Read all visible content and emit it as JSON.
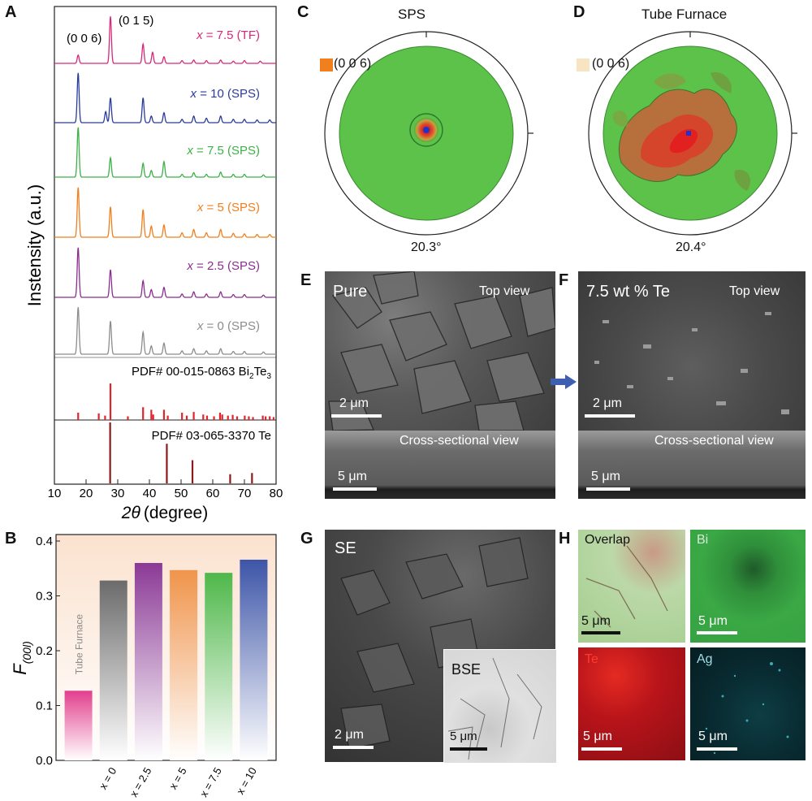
{
  "panel_labels": {
    "a": "A",
    "b": "B",
    "c": "C",
    "d": "D",
    "e": "E",
    "f": "F",
    "g": "G",
    "h": "H"
  },
  "chart_data": [
    {
      "type": "line",
      "panel": "A",
      "xlabel_var": "2θ",
      "xlabel_unit": "(degree)",
      "ylabel": "Instensity (a.u.)",
      "xlim": [
        10,
        80
      ],
      "xticks": [
        10,
        20,
        30,
        40,
        50,
        60,
        70,
        80
      ],
      "peak_labels": [
        "(0 0 6)",
        "(0 1 5)"
      ],
      "series": [
        {
          "name": "x = 7.5 (TF)",
          "var": "x",
          "rest": " = 7.5 (TF)",
          "color": "#d6297a",
          "peaks": [
            [
              17.5,
              0.15
            ],
            [
              27.7,
              0.85
            ],
            [
              38,
              0.35
            ],
            [
              41,
              0.2
            ],
            [
              44.6,
              0.12
            ],
            [
              50.3,
              0.05
            ],
            [
              54,
              0.06
            ],
            [
              58,
              0.05
            ],
            [
              62.5,
              0.06
            ],
            [
              66.5,
              0.04
            ],
            [
              70,
              0.05
            ],
            [
              75,
              0.04
            ]
          ]
        },
        {
          "name": "x = 10 (SPS)",
          "var": "x",
          "rest": " = 10 (SPS)",
          "color": "#2a3b9c",
          "peaks": [
            [
              17.5,
              0.9
            ],
            [
              26.2,
              0.2
            ],
            [
              27.7,
              0.45
            ],
            [
              38,
              0.45
            ],
            [
              40.6,
              0.12
            ],
            [
              44.6,
              0.18
            ],
            [
              50.3,
              0.06
            ],
            [
              54,
              0.12
            ],
            [
              58,
              0.08
            ],
            [
              62.5,
              0.12
            ],
            [
              66.5,
              0.06
            ],
            [
              70,
              0.06
            ],
            [
              74,
              0.05
            ],
            [
              78,
              0.05
            ]
          ]
        },
        {
          "name": "x = 7.5 (SPS)",
          "var": "x",
          "rest": " = 7.5 (SPS)",
          "color": "#3db048",
          "peaks": [
            [
              17.5,
              0.9
            ],
            [
              27.7,
              0.35
            ],
            [
              38,
              0.25
            ],
            [
              40.6,
              0.12
            ],
            [
              44.6,
              0.28
            ],
            [
              50.3,
              0.05
            ],
            [
              54,
              0.08
            ],
            [
              58,
              0.05
            ],
            [
              62.5,
              0.09
            ],
            [
              66.5,
              0.05
            ],
            [
              70,
              0.05
            ],
            [
              76,
              0.04
            ]
          ]
        },
        {
          "name": "x = 5 (SPS)",
          "var": "x",
          "rest": " = 5 (SPS)",
          "color": "#f07f1e",
          "peaks": [
            [
              17.5,
              0.9
            ],
            [
              27.7,
              0.55
            ],
            [
              38,
              0.5
            ],
            [
              40.6,
              0.2
            ],
            [
              44.6,
              0.22
            ],
            [
              50.3,
              0.08
            ],
            [
              54,
              0.14
            ],
            [
              58,
              0.08
            ],
            [
              62.5,
              0.14
            ],
            [
              66.5,
              0.07
            ],
            [
              70,
              0.06
            ],
            [
              74,
              0.05
            ],
            [
              78,
              0.05
            ]
          ]
        },
        {
          "name": "x = 2.5 (SPS)",
          "var": "x",
          "rest": " = 2.5 (SPS)",
          "color": "#8b2d8e",
          "peaks": [
            [
              17.5,
              0.9
            ],
            [
              27.7,
              0.5
            ],
            [
              38,
              0.3
            ],
            [
              40.6,
              0.14
            ],
            [
              44.6,
              0.18
            ],
            [
              50.3,
              0.06
            ],
            [
              54,
              0.1
            ],
            [
              58,
              0.06
            ],
            [
              62.5,
              0.1
            ],
            [
              66.5,
              0.05
            ],
            [
              70,
              0.05
            ],
            [
              76,
              0.04
            ]
          ]
        },
        {
          "name": "x = 0 (SPS)",
          "var": "x",
          "rest": " = 0 (SPS)",
          "color": "#8c8c8c",
          "peaks": [
            [
              17.5,
              0.85
            ],
            [
              27.7,
              0.6
            ],
            [
              38,
              0.4
            ],
            [
              40.6,
              0.15
            ],
            [
              44.6,
              0.2
            ],
            [
              50.3,
              0.06
            ],
            [
              54,
              0.1
            ],
            [
              58,
              0.06
            ],
            [
              62.5,
              0.1
            ],
            [
              66.5,
              0.05
            ],
            [
              70,
              0.05
            ],
            [
              76,
              0.04
            ]
          ]
        }
      ],
      "references": [
        {
          "name": "PDF# 00-015-0863 Bi2Te3",
          "prefix": "PDF# 00-015-0863 Bi",
          "sub1": "2",
          "mid": "Te",
          "sub2": "3",
          "color": "#e0242a",
          "lines": [
            [
              17.5,
              0.2
            ],
            [
              24,
              0.18
            ],
            [
              26,
              0.12
            ],
            [
              27.7,
              1.0
            ],
            [
              33.2,
              0.1
            ],
            [
              38,
              0.35
            ],
            [
              40.6,
              0.28
            ],
            [
              41.2,
              0.15
            ],
            [
              44.6,
              0.28
            ],
            [
              45.8,
              0.12
            ],
            [
              50.3,
              0.2
            ],
            [
              51.8,
              0.12
            ],
            [
              54,
              0.22
            ],
            [
              57,
              0.15
            ],
            [
              58.2,
              0.12
            ],
            [
              60.4,
              0.1
            ],
            [
              62.3,
              0.2
            ],
            [
              63,
              0.15
            ],
            [
              64.8,
              0.12
            ],
            [
              66.3,
              0.14
            ],
            [
              67.7,
              0.1
            ],
            [
              70.1,
              0.12
            ],
            [
              71.4,
              0.1
            ],
            [
              72.7,
              0.08
            ],
            [
              75.8,
              0.12
            ],
            [
              76.7,
              0.1
            ],
            [
              78,
              0.1
            ],
            [
              79.2,
              0.08
            ]
          ]
        },
        {
          "name": "PDF# 03-065-3370 Te",
          "prefix": "PDF# 03-065-3370 Te",
          "sub1": "",
          "mid": "",
          "sub2": "",
          "color": "#8b1a1a",
          "lines": [
            [
              27.6,
              1.0
            ],
            [
              45.5,
              0.65
            ],
            [
              53.6,
              0.38
            ],
            [
              65.5,
              0.15
            ],
            [
              72.4,
              0.17
            ]
          ]
        }
      ]
    },
    {
      "type": "bar",
      "panel": "B",
      "ylabel_main": "F",
      "ylabel_sub": "(00l)",
      "ylim": [
        0,
        0.4
      ],
      "yticks": [
        "0.0",
        "0.1",
        "0.2",
        "0.3",
        "0.4"
      ],
      "categories": [
        "Tube Furnace",
        "x = 0",
        "x = 2.5",
        "x = 5",
        "x = 7.5",
        "x = 10"
      ],
      "xtick_labels": [
        "",
        "x = 0",
        "x = 2.5",
        "x = 5",
        "x = 7.5",
        "x = 10"
      ],
      "values": [
        0.127,
        0.328,
        0.36,
        0.347,
        0.342,
        0.366
      ],
      "colors": [
        "#e23f8d",
        "#6b6b6b",
        "#8b3a96",
        "#f0944b",
        "#4fb84a",
        "#3d55a8"
      ],
      "inbar_label": "Tube Furnace"
    }
  ],
  "pole_figures": {
    "c": {
      "title": "SPS",
      "legend": "(0 0 6)",
      "legend_color": "#f07f1e",
      "angle": "20.3°"
    },
    "d": {
      "title": "Tube Furnace",
      "legend": "(0 0 6)",
      "legend_color": "#f6e4c2",
      "angle": "20.4°"
    }
  },
  "sem": {
    "e": {
      "label": "Pure",
      "top": "Top view",
      "cross": "Cross-sectional view",
      "scale_top": "2 μm",
      "scale_cross": "5 μm"
    },
    "f": {
      "label": "7.5 wt % Te",
      "top": "Top view",
      "cross": "Cross-sectional view",
      "scale_top": "2 μm",
      "scale_cross": "5 μm"
    },
    "g": {
      "label": "SE",
      "inset": "BSE",
      "scale_main": "2 μm",
      "scale_inset": "5 μm"
    },
    "h": {
      "overlap": "Overlap",
      "bi": "Bi",
      "te": "Te",
      "ag": "Ag",
      "scale": "5 μm",
      "te_color": "#e0242a",
      "ag_color": "#48c8d8"
    }
  }
}
